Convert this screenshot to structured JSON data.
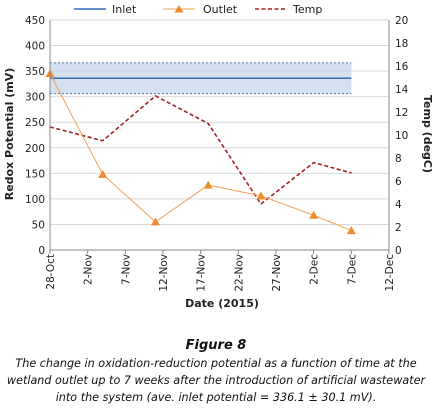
{
  "figure": {
    "title": "Figure 8",
    "caption": "The change in oxidation-reduction potential as a function of time at the wetland outlet up to 7 weeks after the introduction of artificial wastewater into the system (ave. inlet potential = 336.1 ± 30.1 mV)."
  },
  "colors": {
    "inlet": "#2e6cb5",
    "band": "#c5d6ea",
    "band_edge": "#4f79b3",
    "outlet": "#f0a05a",
    "outlet_marker": "#ef8c2f",
    "temp": "#a22121",
    "grid": "#d9d9d9"
  },
  "chart_data": {
    "type": "line",
    "xlabel": "Date (2015)",
    "ylabel": "Redox Potential (mV)",
    "y2label": "Temp (degC)",
    "x_range": [
      0,
      45
    ],
    "x_ticks": [
      {
        "day": 0,
        "label": "28-Oct"
      },
      {
        "day": 5,
        "label": "2-Nov"
      },
      {
        "day": 10,
        "label": "7-Nov"
      },
      {
        "day": 15,
        "label": "12-Nov"
      },
      {
        "day": 20,
        "label": "17-Nov"
      },
      {
        "day": 25,
        "label": "22-Nov"
      },
      {
        "day": 30,
        "label": "27-Nov"
      },
      {
        "day": 35,
        "label": "2-Dec"
      },
      {
        "day": 40,
        "label": "7-Dec"
      },
      {
        "day": 45,
        "label": "12-Dec"
      }
    ],
    "ylim": [
      0,
      450
    ],
    "y_ticks": [
      0,
      50,
      100,
      150,
      200,
      250,
      300,
      350,
      400,
      450
    ],
    "y2lim": [
      0,
      20
    ],
    "y2_ticks": [
      0,
      2,
      4,
      6,
      8,
      10,
      12,
      14,
      16,
      18,
      20
    ],
    "grid": "horizontal",
    "legend": "top",
    "series": [
      {
        "name": "Inlet",
        "axis": "left",
        "style": "solid",
        "x": [
          0,
          40
        ],
        "y": [
          336.1,
          336.1
        ],
        "band": [
          306,
          366.2
        ]
      },
      {
        "name": "Outlet",
        "axis": "left",
        "style": "solid-triangles",
        "x": [
          0,
          7,
          14,
          21,
          28,
          35,
          40
        ],
        "y": [
          345,
          148,
          55,
          127,
          106,
          68,
          38
        ]
      },
      {
        "name": "Temp",
        "axis": "right",
        "style": "dashed",
        "x": [
          0,
          7,
          14,
          21,
          28,
          35,
          40
        ],
        "y": [
          10.7,
          9.5,
          13.4,
          11,
          4,
          7.6,
          6.7
        ]
      }
    ]
  }
}
